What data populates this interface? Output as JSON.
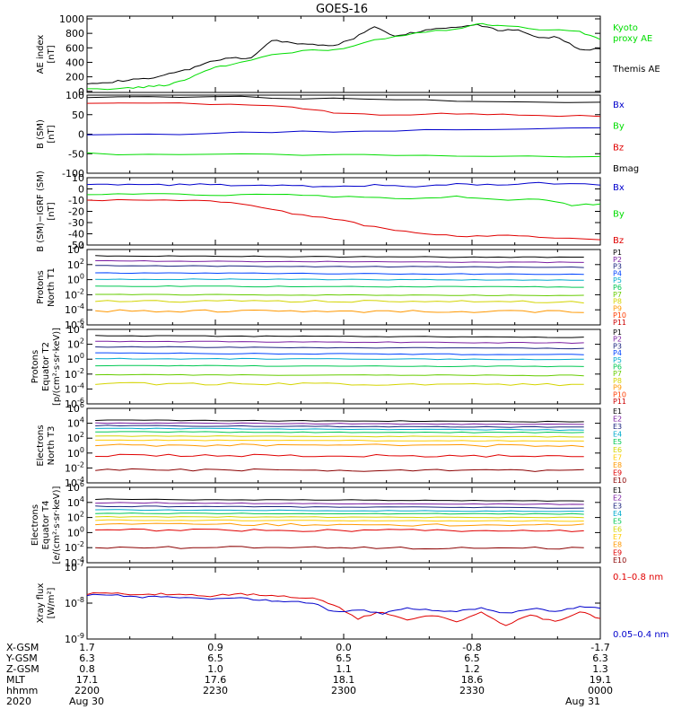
{
  "title": "GOES-16",
  "colors": {
    "black": "#000000",
    "red": "#e00000",
    "green": "#00dd00",
    "blue": "#0000cc",
    "p": [
      "#000000",
      "#7b1fa2",
      "#1a237e",
      "#0044ff",
      "#00aacc",
      "#00c853",
      "#66cc00",
      "#d4d400",
      "#ff9800",
      "#ff3d00",
      "#cc0000",
      "#8b0000"
    ]
  },
  "panels": [
    {
      "id": "ae",
      "ylabel": "AE index\n[nT]",
      "ticks": [
        "1000",
        "800",
        "600",
        "400",
        "200",
        "0"
      ],
      "ylim": [
        0,
        1050
      ],
      "legend": [
        {
          "text": "Kyoto",
          "color": "#00dd00"
        },
        {
          "text": "proxy AE",
          "color": "#00dd00"
        },
        {
          "text": "Themis AE",
          "color": "#000000"
        }
      ],
      "series": [
        {
          "name": "Themis AE",
          "color": "#000000",
          "points": [
            [
              0,
              130
            ],
            [
              5,
              140
            ],
            [
              10,
              170
            ],
            [
              15,
              190
            ],
            [
              20,
              250
            ],
            [
              25,
              320
            ],
            [
              30,
              430
            ],
            [
              35,
              470
            ],
            [
              40,
              470
            ],
            [
              45,
              720
            ],
            [
              50,
              680
            ],
            [
              55,
              660
            ],
            [
              60,
              640
            ],
            [
              65,
              750
            ],
            [
              70,
              900
            ],
            [
              75,
              780
            ],
            [
              80,
              830
            ],
            [
              85,
              880
            ],
            [
              90,
              900
            ],
            [
              95,
              940
            ],
            [
              100,
              860
            ],
            [
              105,
              860
            ],
            [
              110,
              760
            ],
            [
              115,
              760
            ],
            [
              120,
              580
            ],
            [
              125,
              600
            ]
          ]
        },
        {
          "name": "Kyoto proxy AE",
          "color": "#00dd00",
          "points": [
            [
              0,
              40
            ],
            [
              10,
              60
            ],
            [
              15,
              80
            ],
            [
              20,
              110
            ],
            [
              25,
              200
            ],
            [
              30,
              330
            ],
            [
              35,
              380
            ],
            [
              45,
              520
            ],
            [
              55,
              580
            ],
            [
              60,
              580
            ],
            [
              70,
              720
            ],
            [
              80,
              820
            ],
            [
              90,
              880
            ],
            [
              95,
              940
            ],
            [
              100,
              930
            ],
            [
              110,
              870
            ],
            [
              120,
              840
            ],
            [
              125,
              730
            ]
          ]
        }
      ]
    },
    {
      "id": "bsm",
      "ylabel": "B (SM)\n[nT]",
      "ticks": [
        "100",
        "50",
        "0",
        "-50",
        "-100"
      ],
      "ylim": [
        -110,
        110
      ],
      "legend": [
        {
          "text": "Bx",
          "color": "#0000cc"
        },
        {
          "text": "By",
          "color": "#00dd00"
        },
        {
          "text": "Bz",
          "color": "#e00000"
        },
        {
          "text": "Bmag",
          "color": "#000000"
        }
      ],
      "series": [
        {
          "name": "Bmag",
          "color": "#000000",
          "points": [
            [
              0,
              105
            ],
            [
              30,
              106
            ],
            [
              60,
              100
            ],
            [
              90,
              95
            ],
            [
              125,
              90
            ]
          ]
        },
        {
          "name": "Bz",
          "color": "#e00000",
          "points": [
            [
              0,
              88
            ],
            [
              30,
              86
            ],
            [
              50,
              76
            ],
            [
              60,
              60
            ],
            [
              75,
              55
            ],
            [
              90,
              58
            ],
            [
              105,
              55
            ],
            [
              125,
              50
            ]
          ]
        },
        {
          "name": "Bx",
          "color": "#0000cc",
          "points": [
            [
              0,
              -2
            ],
            [
              30,
              2
            ],
            [
              60,
              8
            ],
            [
              90,
              14
            ],
            [
              125,
              18
            ]
          ]
        },
        {
          "name": "By",
          "color": "#00dd00",
          "points": [
            [
              0,
              -55
            ],
            [
              30,
              -57
            ],
            [
              60,
              -58
            ],
            [
              90,
              -60
            ],
            [
              125,
              -63
            ]
          ]
        }
      ]
    },
    {
      "id": "bigrf",
      "ylabel": "B (SM)−IGRF (SM)\n[nT]",
      "ticks": [
        "10",
        "0",
        "-10",
        "-20",
        "-30",
        "-40",
        "-50"
      ],
      "ylim": [
        -52,
        12
      ],
      "legend": [
        {
          "text": "Bx",
          "color": "#0000cc"
        },
        {
          "text": "By",
          "color": "#00dd00"
        },
        {
          "text": "Bz",
          "color": "#e00000"
        }
      ],
      "series": [
        {
          "name": "Bx",
          "color": "#0000cc",
          "points": [
            [
              0,
              5
            ],
            [
              10,
              6
            ],
            [
              20,
              5
            ],
            [
              30,
              6
            ],
            [
              40,
              4
            ],
            [
              50,
              5
            ],
            [
              60,
              3
            ],
            [
              70,
              5
            ],
            [
              80,
              4
            ],
            [
              90,
              6
            ],
            [
              100,
              5
            ],
            [
              110,
              7
            ],
            [
              125,
              5
            ]
          ]
        },
        {
          "name": "By",
          "color": "#00dd00",
          "points": [
            [
              0,
              -4
            ],
            [
              15,
              -3
            ],
            [
              30,
              -5
            ],
            [
              45,
              -4
            ],
            [
              60,
              -6
            ],
            [
              75,
              -8
            ],
            [
              90,
              -6
            ],
            [
              100,
              -9
            ],
            [
              110,
              -8
            ],
            [
              118,
              -14
            ],
            [
              125,
              -13
            ]
          ]
        },
        {
          "name": "Bz",
          "color": "#e00000",
          "points": [
            [
              0,
              -10
            ],
            [
              15,
              -9
            ],
            [
              30,
              -10
            ],
            [
              40,
              -14
            ],
            [
              50,
              -22
            ],
            [
              60,
              -27
            ],
            [
              70,
              -35
            ],
            [
              80,
              -40
            ],
            [
              90,
              -44
            ],
            [
              100,
              -43
            ],
            [
              110,
              -44
            ],
            [
              125,
              -47
            ]
          ]
        }
      ]
    },
    {
      "id": "pn",
      "ylabel": "Protons\nNorth T1",
      "log": true,
      "ticks": [
        "10^4",
        "10^2",
        "10^0",
        "10^-2",
        "10^-4",
        "10^-6"
      ],
      "ylim": [
        -6.5,
        4.2
      ],
      "legend": [
        {
          "text": "P1",
          "color": "#000000"
        },
        {
          "text": "P2",
          "color": "#7b1fa2"
        },
        {
          "text": "P3",
          "color": "#1a237e"
        },
        {
          "text": "P4",
          "color": "#0044ff"
        },
        {
          "text": "P5",
          "color": "#00aacc"
        },
        {
          "text": "P6",
          "color": "#00c853"
        },
        {
          "text": "P7",
          "color": "#66cc00"
        },
        {
          "text": "P8",
          "color": "#d4d400"
        },
        {
          "text": "P9",
          "color": "#ff9800"
        },
        {
          "text": "P10",
          "color": "#ff3d00"
        },
        {
          "text": "P11",
          "color": "#cc0000"
        }
      ],
      "levels": [
        3.3,
        2.6,
        1.9,
        0.9,
        0.0,
        -1.0,
        -2.2,
        -3.1,
        -4.5
      ]
    },
    {
      "id": "pe",
      "ylabel": "Protons\nEquator T2\n[p/(cm²·s·sr·keV)]",
      "log": true,
      "ticks": [
        "10^4",
        "10^2",
        "10^0",
        "10^-2",
        "10^-4",
        "10^-6"
      ],
      "ylim": [
        -6.5,
        4.2
      ],
      "legend": [
        {
          "text": "P1",
          "color": "#000000"
        },
        {
          "text": "P2",
          "color": "#7b1fa2"
        },
        {
          "text": "P3",
          "color": "#1a237e"
        },
        {
          "text": "P4",
          "color": "#0044ff"
        },
        {
          "text": "P5",
          "color": "#00aacc"
        },
        {
          "text": "P6",
          "color": "#00c853"
        },
        {
          "text": "P7",
          "color": "#66cc00"
        },
        {
          "text": "P8",
          "color": "#d4d400"
        },
        {
          "text": "P9",
          "color": "#ff9800"
        },
        {
          "text": "P10",
          "color": "#ff3d00"
        },
        {
          "text": "P11",
          "color": "#cc0000"
        }
      ],
      "levels": [
        3.3,
        2.5,
        1.7,
        0.8,
        0.0,
        -1.0,
        -2.3,
        -3.6
      ]
    },
    {
      "id": "en",
      "ylabel": "Electrons\nNorth T3",
      "log": true,
      "ticks": [
        "10^6",
        "10^4",
        "10^2",
        "10^0",
        "10^-2",
        "10^-4"
      ],
      "ylim": [
        -4.5,
        6.3
      ],
      "legend": [
        {
          "text": "E1",
          "color": "#000000"
        },
        {
          "text": "E2",
          "color": "#7b1fa2"
        },
        {
          "text": "E3",
          "color": "#1a237e"
        },
        {
          "text": "E4",
          "color": "#00aacc"
        },
        {
          "text": "E5",
          "color": "#00c853"
        },
        {
          "text": "E6",
          "color": "#d4d400"
        },
        {
          "text": "E7",
          "color": "#ffcc00"
        },
        {
          "text": "E8",
          "color": "#ff9800"
        },
        {
          "text": "E9",
          "color": "#e00000"
        },
        {
          "text": "E10",
          "color": "#8b0000"
        }
      ],
      "levels": [
        4.6,
        4.2,
        3.8,
        3.4,
        2.9,
        2.3,
        1.7,
        1.0,
        -0.5,
        -2.6
      ]
    },
    {
      "id": "ee",
      "ylabel": "Electrons\nEquator T4\n[e/(cm²·s·sr·keV)]",
      "log": true,
      "ticks": [
        "10^6",
        "10^4",
        "10^2",
        "10^0",
        "10^-2",
        "10^-4"
      ],
      "ylim": [
        -4.5,
        6.3
      ],
      "legend": [
        {
          "text": "E1",
          "color": "#000000"
        },
        {
          "text": "E2",
          "color": "#7b1fa2"
        },
        {
          "text": "E3",
          "color": "#1a237e"
        },
        {
          "text": "E4",
          "color": "#00aacc"
        },
        {
          "text": "E5",
          "color": "#00c853"
        },
        {
          "text": "E6",
          "color": "#d4d400"
        },
        {
          "text": "E7",
          "color": "#ffcc00"
        },
        {
          "text": "E8",
          "color": "#ff9800"
        },
        {
          "text": "E9",
          "color": "#e00000"
        },
        {
          "text": "E10",
          "color": "#8b0000"
        }
      ],
      "levels": [
        4.6,
        4.1,
        3.6,
        3.1,
        2.6,
        2.1,
        1.6,
        1.0,
        0.2,
        -2.3
      ]
    },
    {
      "id": "xr",
      "ylabel": "Xray flux\n[W/m²]",
      "log": true,
      "ticks": [
        "10^-7",
        "10^-8",
        "10^-9"
      ],
      "ylim": [
        -9.1,
        -7.0
      ],
      "legend": [
        {
          "text": "0.1–0.8 nm",
          "color": "#e00000"
        },
        {
          "text": "0.05–0.4 nm",
          "color": "#0000cc"
        }
      ],
      "series": [
        {
          "name": "0.1-0.8 nm",
          "color": "#e00000",
          "points": [
            [
              0,
              -7.78
            ],
            [
              6,
              -7.75
            ],
            [
              12,
              -7.82
            ],
            [
              18,
              -7.78
            ],
            [
              24,
              -7.8
            ],
            [
              30,
              -7.85
            ],
            [
              36,
              -7.78
            ],
            [
              42,
              -7.8
            ],
            [
              48,
              -7.85
            ],
            [
              55,
              -7.9
            ],
            [
              60,
              -8.1
            ],
            [
              66,
              -8.5
            ],
            [
              72,
              -8.3
            ],
            [
              78,
              -8.55
            ],
            [
              84,
              -8.4
            ],
            [
              90,
              -8.6
            ],
            [
              96,
              -8.3
            ],
            [
              102,
              -8.7
            ],
            [
              108,
              -8.4
            ],
            [
              114,
              -8.6
            ],
            [
              120,
              -8.3
            ],
            [
              125,
              -8.5
            ]
          ]
        },
        {
          "name": "0.05-0.4 nm",
          "color": "#0000cc",
          "points": [
            [
              0,
              -7.82
            ],
            [
              6,
              -7.8
            ],
            [
              12,
              -7.88
            ],
            [
              18,
              -7.85
            ],
            [
              24,
              -7.88
            ],
            [
              30,
              -7.92
            ],
            [
              36,
              -7.9
            ],
            [
              42,
              -7.95
            ],
            [
              48,
              -8.0
            ],
            [
              55,
              -8.05
            ],
            [
              60,
              -8.3
            ],
            [
              66,
              -8.25
            ],
            [
              72,
              -8.35
            ],
            [
              78,
              -8.2
            ],
            [
              84,
              -8.25
            ],
            [
              90,
              -8.3
            ],
            [
              96,
              -8.2
            ],
            [
              102,
              -8.35
            ],
            [
              108,
              -8.2
            ],
            [
              114,
              -8.3
            ],
            [
              120,
              -8.15
            ],
            [
              125,
              -8.2
            ]
          ]
        }
      ]
    }
  ],
  "xaxis": {
    "row_labels": [
      "X-GSM",
      "Y-GSM",
      "Z-GSM",
      "MLT",
      "hhmm",
      "2020"
    ],
    "columns": [
      [
        "1.7",
        "6.3",
        "0.8",
        "17.1",
        "2200",
        "Aug 30"
      ],
      [
        "0.9",
        "6.5",
        "1.0",
        "17.6",
        "2230",
        ""
      ],
      [
        "0.0",
        "6.5",
        "1.1",
        "18.1",
        "2300",
        ""
      ],
      [
        "-0.8",
        "6.5",
        "1.2",
        "18.6",
        "2330",
        ""
      ],
      [
        "-1.7",
        "6.3",
        "1.3",
        "19.1",
        "0000",
        "Aug 31"
      ]
    ]
  },
  "chart_data": {
    "type": "line",
    "title": "GOES-16",
    "xlabel": "hhmm",
    "x_ticks": [
      "2200",
      "2230",
      "2300",
      "2330",
      "0000"
    ],
    "panels": [
      "AE index [nT]",
      "B (SM) [nT]",
      "B (SM)-IGRF (SM) [nT]",
      "Protons North T1",
      "Protons Equator T2",
      "Electrons North T3",
      "Electrons Equator T4",
      "Xray flux [W/m2]"
    ]
  }
}
